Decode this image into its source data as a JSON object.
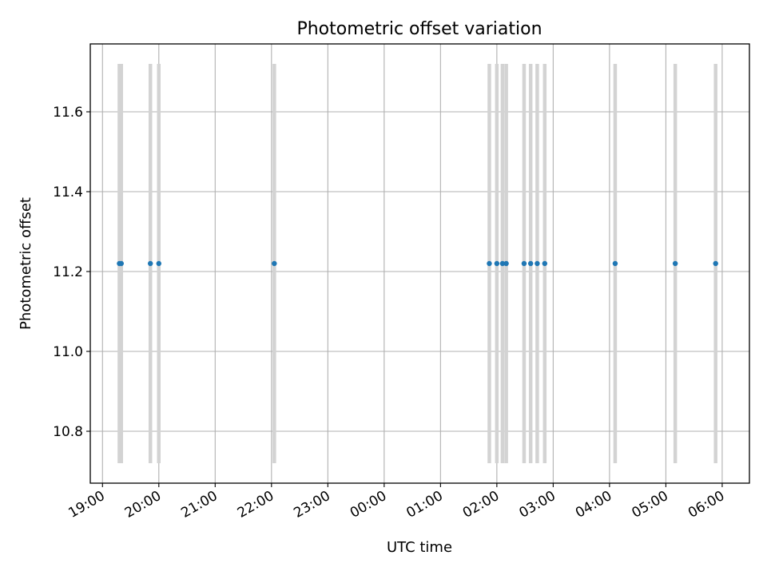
{
  "chart_data": {
    "type": "scatter",
    "title": "Photometric offset variation",
    "xlabel": "UTC time",
    "ylabel": "Photometric offset",
    "x_tick_labels": [
      "19:00",
      "20:00",
      "21:00",
      "22:00",
      "23:00",
      "00:00",
      "01:00",
      "02:00",
      "03:00",
      "04:00",
      "05:00",
      "06:00"
    ],
    "y_tick_labels": [
      "10.8",
      "11.0",
      "11.2",
      "11.4",
      "11.6"
    ],
    "y_ticks": [
      10.8,
      11.0,
      11.2,
      11.4,
      11.6
    ],
    "xlim": [
      "18:47",
      "06:29"
    ],
    "ylim": [
      10.67,
      11.77
    ],
    "grid": true,
    "points": {
      "color": "#1f77b4",
      "x": [
        "19:18",
        "19:20",
        "19:51",
        "20:00",
        "22:03",
        "01:52",
        "02:00",
        "02:06",
        "02:10",
        "02:29",
        "02:36",
        "02:43",
        "02:51",
        "04:06",
        "05:10",
        "05:53"
      ],
      "y": [
        11.22,
        11.22,
        11.22,
        11.22,
        11.22,
        11.22,
        11.22,
        11.22,
        11.22,
        11.22,
        11.22,
        11.22,
        11.22,
        11.22,
        11.22,
        11.22
      ]
    },
    "vertical_bands": {
      "color": "#d3d3d3",
      "y_range": [
        10.72,
        11.72
      ],
      "x": [
        "19:18",
        "19:20",
        "19:51",
        "20:00",
        "22:03",
        "01:52",
        "02:00",
        "02:06",
        "02:10",
        "02:29",
        "02:36",
        "02:43",
        "02:51",
        "04:06",
        "05:10",
        "05:53"
      ]
    }
  }
}
